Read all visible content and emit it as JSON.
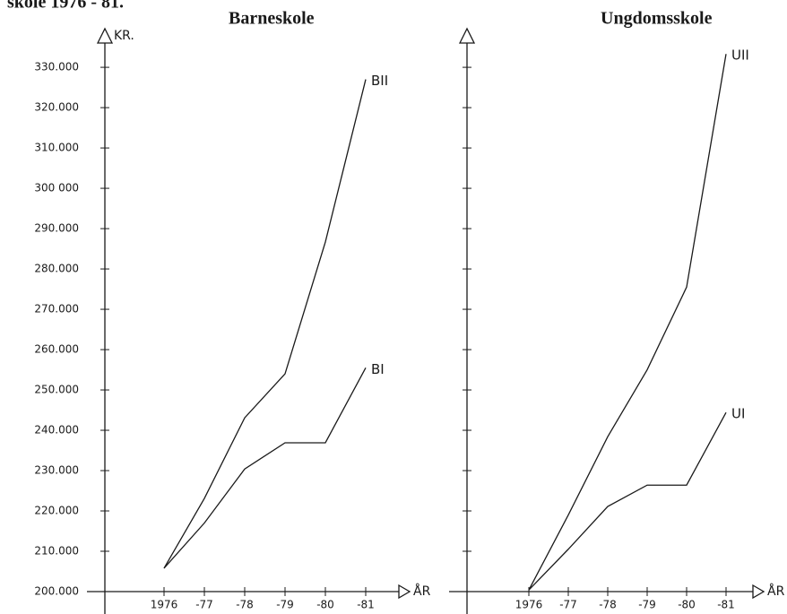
{
  "header": "skole 1976 - 81.",
  "chart_data": [
    {
      "type": "line",
      "title": "Barneskole",
      "y_label": "KR.",
      "x_label": "ÅR",
      "categories": [
        "1976",
        "-77",
        "-78",
        "-79",
        "-80",
        "-81"
      ],
      "series": [
        {
          "name": "BII",
          "color": "#1a1a1a",
          "values": [
            205800,
            223100,
            243100,
            254000,
            286700,
            327000
          ]
        },
        {
          "name": "BI",
          "color": "#1a1a1a",
          "values": [
            205800,
            217000,
            230400,
            236900,
            236900,
            255500
          ]
        }
      ],
      "ylim": [
        200000,
        337800
      ],
      "yticks": [
        {
          "value": 200000,
          "label": "200.000"
        },
        {
          "value": 210000,
          "label": "210.000"
        },
        {
          "value": 220000,
          "label": "220.000"
        },
        {
          "value": 230000,
          "label": "230.000"
        },
        {
          "value": 240000,
          "label": "240.000"
        },
        {
          "value": 250000,
          "label": "250.000"
        },
        {
          "value": 260000,
          "label": "260.000"
        },
        {
          "value": 270000,
          "label": "270.000"
        },
        {
          "value": 280000,
          "label": "280.000"
        },
        {
          "value": 290000,
          "label": "290.000"
        },
        {
          "value": 300000,
          "label": "300 000"
        },
        {
          "value": 310000,
          "label": "310.000"
        },
        {
          "value": 320000,
          "label": "320.000"
        },
        {
          "value": 330000,
          "label": "330.000"
        }
      ],
      "tick_labels": true
    },
    {
      "type": "line",
      "title": "Ungdomsskole",
      "x_label": "ÅR",
      "categories": [
        "1976",
        "-77",
        "-78",
        "-79",
        "-80",
        "-81"
      ],
      "series": [
        {
          "name": "UII",
          "color": "#1a1a1a",
          "values": [
            200400,
            219000,
            238400,
            255000,
            275500,
            333300
          ]
        },
        {
          "name": "UI",
          "color": "#1a1a1a",
          "values": [
            200400,
            210500,
            221100,
            226400,
            226400,
            244400
          ]
        }
      ],
      "ylim": [
        200000,
        337800
      ],
      "yticks": [
        200000,
        210000,
        220000,
        230000,
        240000,
        250000,
        260000,
        270000,
        280000,
        290000,
        300000,
        310000,
        320000,
        330000
      ],
      "tick_labels": false
    }
  ]
}
